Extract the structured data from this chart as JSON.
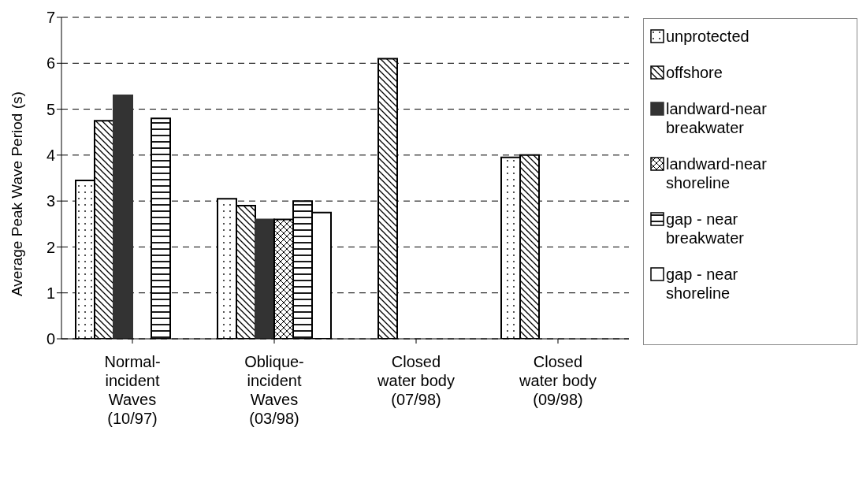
{
  "chart_data": {
    "type": "bar",
    "ylabel": "Average Peak Wave Period (s)",
    "categories": [
      "Normal-incident Waves (10/97)",
      "Oblique-incident Waves (03/98)",
      "Closed water body (07/98)",
      "Closed water body (09/98)"
    ],
    "series": [
      {
        "name": "unprotected",
        "color": "#000000",
        "values": [
          3.45,
          3.05,
          null,
          3.95
        ]
      },
      {
        "name": "offshore",
        "color": "#000000",
        "values": [
          4.75,
          2.9,
          6.1,
          4.0
        ]
      },
      {
        "name": "landward-near breakwater",
        "color": "#333333",
        "values": [
          5.3,
          2.6,
          null,
          null
        ]
      },
      {
        "name": "landward-near shoreline",
        "color": "#000000",
        "values": [
          null,
          2.6,
          null,
          null
        ]
      },
      {
        "name": "gap - near breakwater",
        "color": "#000000",
        "values": [
          4.8,
          3.0,
          null,
          null
        ]
      },
      {
        "name": "gap - near shoreline",
        "color": "#000000",
        "values": [
          null,
          2.75,
          null,
          null
        ]
      }
    ],
    "ylim": [
      0,
      7
    ],
    "yticks": [
      0,
      1,
      2,
      3,
      4,
      5,
      6,
      7
    ],
    "grid": "y",
    "legend": "right"
  }
}
